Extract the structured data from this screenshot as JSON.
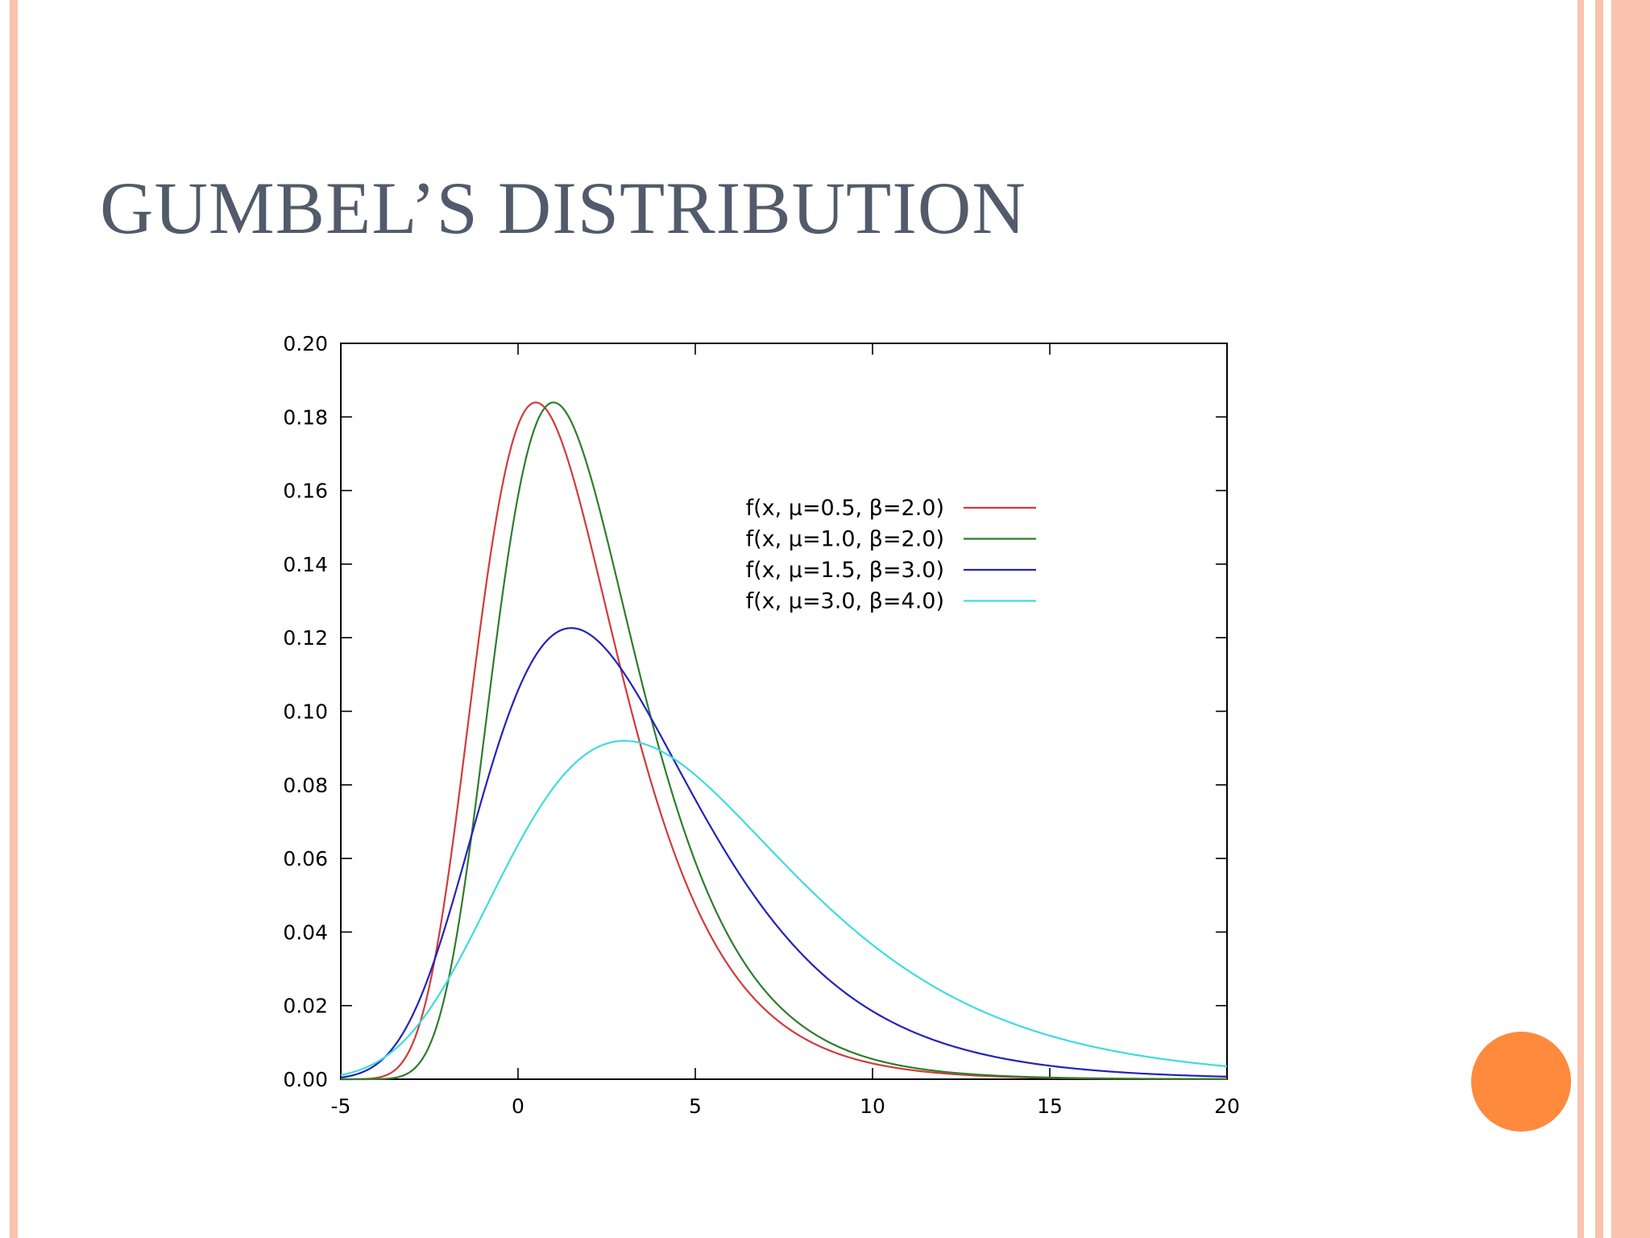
{
  "slide": {
    "title": "GUMBEL’S DISTRIBUTION",
    "stripe_color": "#f9c3ad",
    "accent_circle_color": "#fe8a3e",
    "title_color": "#525b6b"
  },
  "chart_data": {
    "type": "line",
    "title": "",
    "xlabel": "",
    "ylabel": "",
    "xlim": [
      -5,
      20
    ],
    "ylim": [
      0,
      0.2
    ],
    "xticks": [
      "-5",
      "0",
      "5",
      "10",
      "15",
      "20"
    ],
    "yticks": [
      "0.00",
      "0.02",
      "0.04",
      "0.06",
      "0.08",
      "0.10",
      "0.12",
      "0.14",
      "0.16",
      "0.18",
      "0.20"
    ],
    "grid": false,
    "legend_position": "top-right",
    "series": [
      {
        "name": "f(x, μ=0.5, β=2.0)",
        "mu": 0.5,
        "beta": 2.0,
        "color": "#d13b3b"
      },
      {
        "name": "f(x, μ=1.0, β=2.0)",
        "mu": 1.0,
        "beta": 2.0,
        "color": "#2e7d2e"
      },
      {
        "name": "f(x, μ=1.5, β=3.0)",
        "mu": 1.5,
        "beta": 3.0,
        "color": "#2323b8"
      },
      {
        "name": "f(x, μ=3.0, β=4.0)",
        "mu": 3.0,
        "beta": 4.0,
        "color": "#3fdcdc"
      }
    ]
  }
}
